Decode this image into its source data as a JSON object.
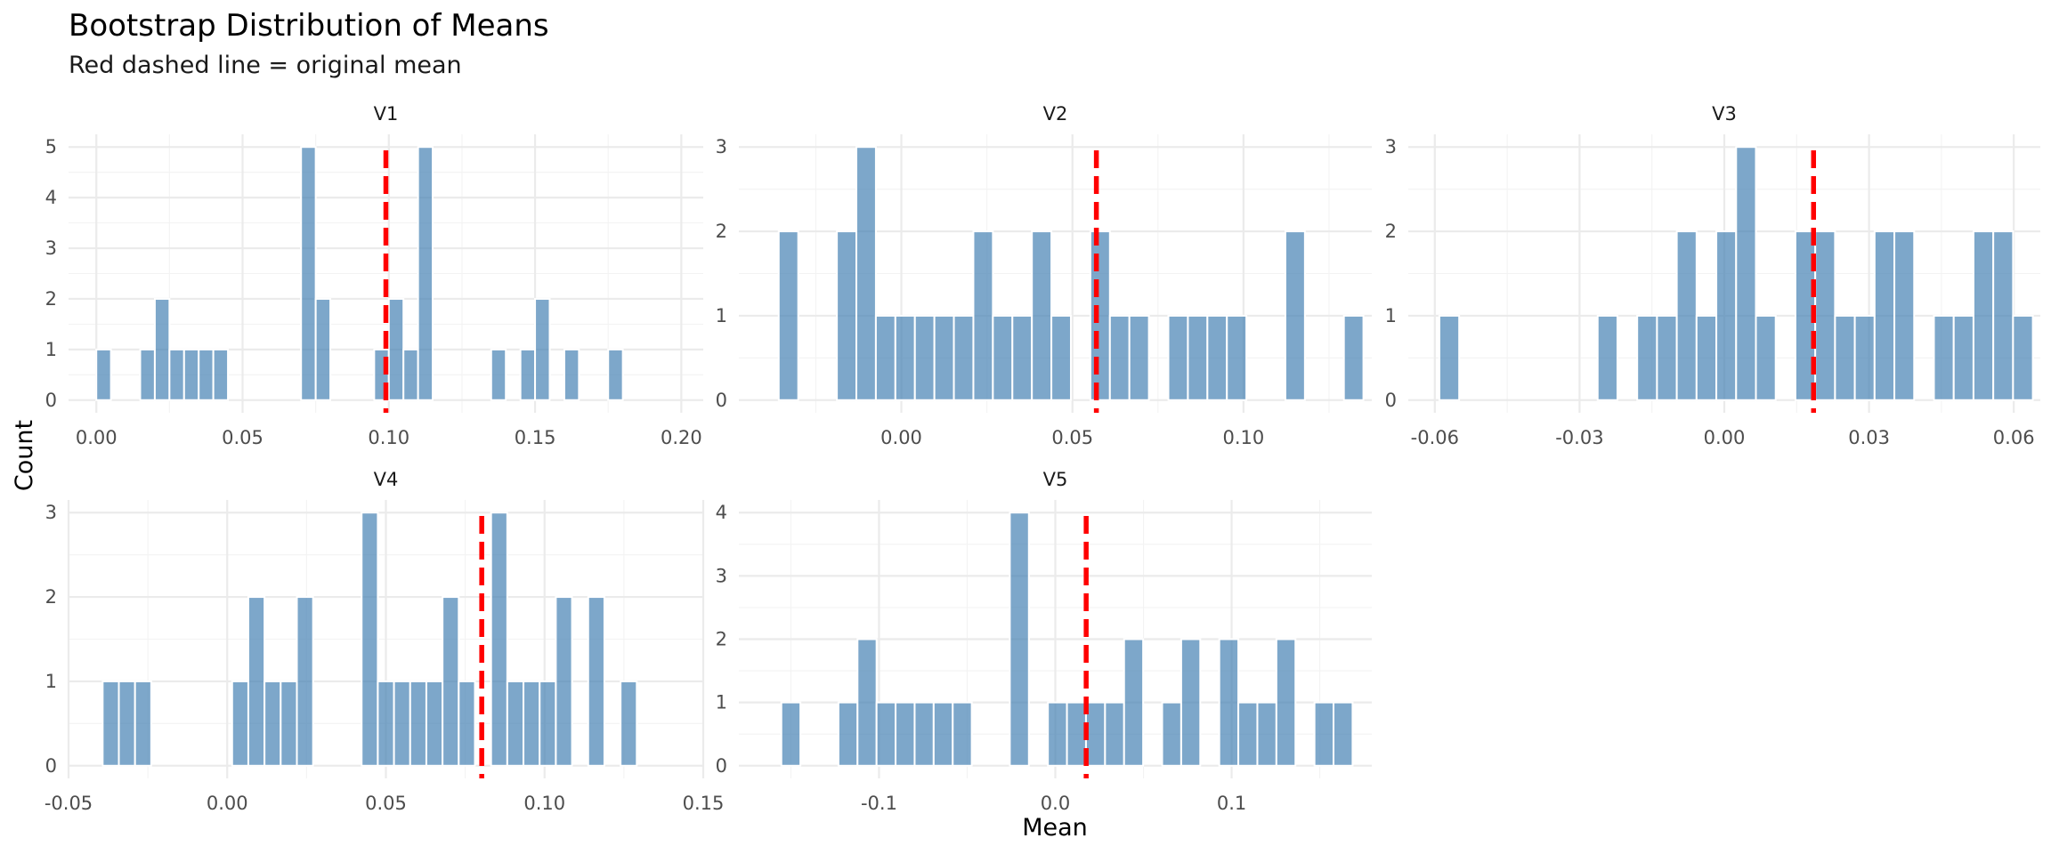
{
  "chart_data": {
    "type": "bar",
    "title": "Bootstrap Distribution of Means",
    "subtitle": "Red dashed line = original mean",
    "xlabel": "Mean",
    "ylabel": "Count",
    "grid": true,
    "colors": {
      "bar": "#4682b4",
      "reference_line": "#ff0000",
      "grid": "#ebebeb"
    },
    "panels": [
      {
        "name": "V1",
        "xlim": [
          -0.0095,
          0.2075
        ],
        "ylim": [
          -0.25,
          5.25
        ],
        "xticks": [
          0.0,
          0.05,
          0.1,
          0.15,
          0.2
        ],
        "xtick_labels": [
          "0.00",
          "0.05",
          "0.10",
          "0.15",
          "0.20"
        ],
        "yticks": [
          0,
          1,
          2,
          3,
          4,
          5
        ],
        "bin_width": 0.005,
        "reference": 0.099,
        "bins": [
          [
            0.0025,
            1
          ],
          [
            0.0175,
            1
          ],
          [
            0.0225,
            2
          ],
          [
            0.0275,
            1
          ],
          [
            0.0325,
            1
          ],
          [
            0.0375,
            1
          ],
          [
            0.0425,
            1
          ],
          [
            0.0725,
            5
          ],
          [
            0.0775,
            2
          ],
          [
            0.0975,
            1
          ],
          [
            0.1025,
            2
          ],
          [
            0.1075,
            1
          ],
          [
            0.1125,
            5
          ],
          [
            0.1375,
            1
          ],
          [
            0.1475,
            1
          ],
          [
            0.1525,
            2
          ],
          [
            0.1625,
            1
          ],
          [
            0.1775,
            1
          ]
        ]
      },
      {
        "name": "V2",
        "xlim": [
          -0.0475,
          0.1375
        ],
        "ylim": [
          -0.15,
          3.15
        ],
        "xticks": [
          0.0,
          0.05,
          0.1
        ],
        "xtick_labels": [
          "0.00",
          "0.05",
          "0.10"
        ],
        "yticks": [
          0,
          1,
          2,
          3
        ],
        "bin_width": 0.0057,
        "reference": 0.057,
        "bins": [
          [
            -0.033,
            2
          ],
          [
            -0.016,
            2
          ],
          [
            -0.0103,
            3
          ],
          [
            -0.0046,
            1
          ],
          [
            0.0011,
            1
          ],
          [
            0.0068,
            1
          ],
          [
            0.0125,
            1
          ],
          [
            0.0182,
            1
          ],
          [
            0.0239,
            2
          ],
          [
            0.0296,
            1
          ],
          [
            0.0353,
            1
          ],
          [
            0.041,
            2
          ],
          [
            0.0467,
            1
          ],
          [
            0.0581,
            2
          ],
          [
            0.0638,
            1
          ],
          [
            0.0695,
            1
          ],
          [
            0.0809,
            1
          ],
          [
            0.0866,
            1
          ],
          [
            0.0923,
            1
          ],
          [
            0.098,
            1
          ],
          [
            0.1151,
            2
          ],
          [
            0.1322,
            1
          ]
        ]
      },
      {
        "name": "V3",
        "xlim": [
          -0.0655,
          0.0655
        ],
        "ylim": [
          -0.15,
          3.15
        ],
        "xticks": [
          -0.06,
          -0.03,
          0.0,
          0.03,
          0.06
        ],
        "xtick_labels": [
          "-0.06",
          "-0.03",
          "0.00",
          "0.03",
          "0.06"
        ],
        "yticks": [
          0,
          1,
          2,
          3
        ],
        "bin_width": 0.0041,
        "reference": 0.0185,
        "bins": [
          [
            -0.057,
            1
          ],
          [
            -0.0242,
            1
          ],
          [
            -0.016,
            1
          ],
          [
            -0.0119,
            1
          ],
          [
            -0.0078,
            2
          ],
          [
            -0.0037,
            1
          ],
          [
            0.0004,
            2
          ],
          [
            0.0045,
            3
          ],
          [
            0.0086,
            1
          ],
          [
            0.0168,
            2
          ],
          [
            0.0209,
            2
          ],
          [
            0.025,
            1
          ],
          [
            0.0291,
            1
          ],
          [
            0.0332,
            2
          ],
          [
            0.0373,
            2
          ],
          [
            0.0455,
            1
          ],
          [
            0.0496,
            1
          ],
          [
            0.0537,
            2
          ],
          [
            0.0578,
            2
          ],
          [
            0.0619,
            1
          ]
        ]
      },
      {
        "name": "V4",
        "xlim": [
          -0.05,
          0.15
        ],
        "ylim": [
          -0.15,
          3.15
        ],
        "xticks": [
          -0.05,
          0.0,
          0.05,
          0.1,
          0.15
        ],
        "xtick_labels": [
          "-0.05",
          "0.00",
          "0.05",
          "0.10",
          "0.15"
        ],
        "yticks": [
          0,
          1,
          2,
          3
        ],
        "bin_width": 0.0051,
        "reference": 0.0802,
        "bins": [
          [
            -0.0367,
            1
          ],
          [
            -0.0316,
            1
          ],
          [
            -0.0265,
            1
          ],
          [
            0.0041,
            1
          ],
          [
            0.0092,
            2
          ],
          [
            0.0143,
            1
          ],
          [
            0.0194,
            1
          ],
          [
            0.0245,
            2
          ],
          [
            0.0449,
            3
          ],
          [
            0.05,
            1
          ],
          [
            0.0551,
            1
          ],
          [
            0.0602,
            1
          ],
          [
            0.0653,
            1
          ],
          [
            0.0704,
            2
          ],
          [
            0.0755,
            1
          ],
          [
            0.0857,
            3
          ],
          [
            0.0908,
            1
          ],
          [
            0.0959,
            1
          ],
          [
            0.101,
            1
          ],
          [
            0.1061,
            2
          ],
          [
            0.1163,
            2
          ],
          [
            0.1265,
            1
          ]
        ]
      },
      {
        "name": "V5",
        "xlim": [
          -0.1795,
          0.1795
        ],
        "ylim": [
          -0.2,
          4.2
        ],
        "xticks": [
          -0.1,
          0.0,
          0.1
        ],
        "xtick_labels": [
          "-0.1",
          "0.0",
          "0.1"
        ],
        "yticks": [
          0,
          1,
          2,
          3,
          4
        ],
        "bin_width": 0.0108,
        "reference": 0.0175,
        "bins": [
          [
            -0.15,
            1
          ],
          [
            -0.1176,
            1
          ],
          [
            -0.1068,
            2
          ],
          [
            -0.096,
            1
          ],
          [
            -0.0852,
            1
          ],
          [
            -0.0744,
            1
          ],
          [
            -0.0636,
            1
          ],
          [
            -0.0528,
            1
          ],
          [
            -0.0204,
            4
          ],
          [
            0.0012,
            1
          ],
          [
            0.012,
            1
          ],
          [
            0.0228,
            1
          ],
          [
            0.0336,
            1
          ],
          [
            0.0444,
            2
          ],
          [
            0.066,
            1
          ],
          [
            0.0768,
            2
          ],
          [
            0.0984,
            2
          ],
          [
            0.1092,
            1
          ],
          [
            0.12,
            1
          ],
          [
            0.1308,
            2
          ],
          [
            0.1524,
            1
          ],
          [
            0.1632,
            1
          ]
        ]
      }
    ]
  }
}
